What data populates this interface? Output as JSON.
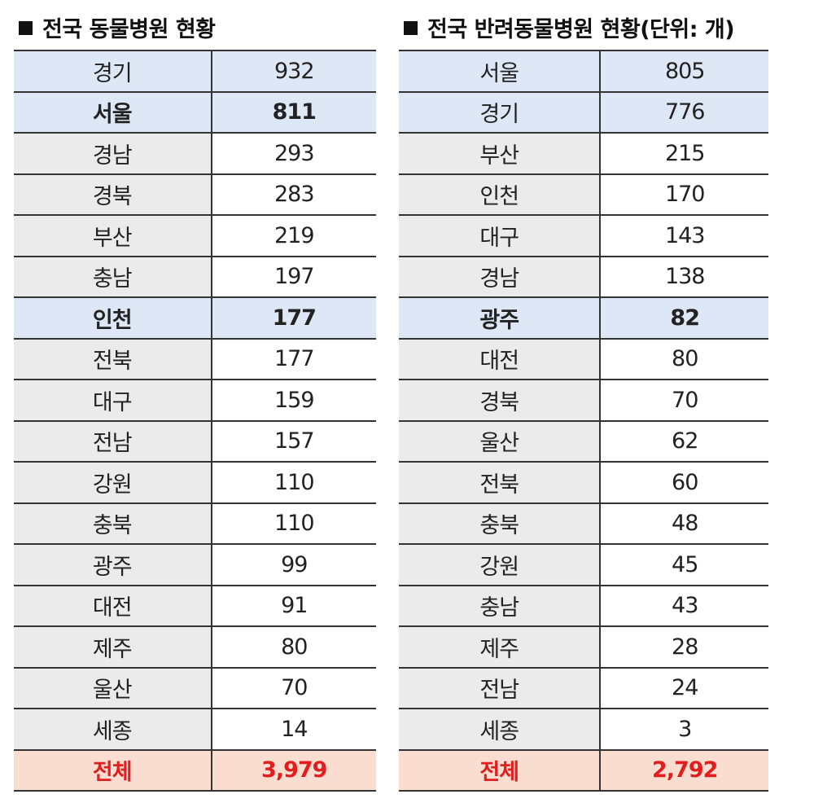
{
  "tables": [
    {
      "title": "전국 동물병원 현황",
      "rows": [
        {
          "region": "경기",
          "value": "932",
          "highlight": true,
          "bold": false
        },
        {
          "region": "서울",
          "value": "811",
          "highlight": true,
          "bold": true
        },
        {
          "region": "경남",
          "value": "293"
        },
        {
          "region": "경북",
          "value": "283"
        },
        {
          "region": "부산",
          "value": "219"
        },
        {
          "region": "충남",
          "value": "197"
        },
        {
          "region": "인천",
          "value": "177",
          "highlight": true,
          "bold": true
        },
        {
          "region": "전북",
          "value": "177"
        },
        {
          "region": "대구",
          "value": "159"
        },
        {
          "region": "전남",
          "value": "157"
        },
        {
          "region": "강원",
          "value": "110"
        },
        {
          "region": "충북",
          "value": "110"
        },
        {
          "region": "광주",
          "value": "99"
        },
        {
          "region": "대전",
          "value": "91"
        },
        {
          "region": "제주",
          "value": "80"
        },
        {
          "region": "울산",
          "value": "70"
        },
        {
          "region": "세종",
          "value": "14"
        }
      ],
      "total": {
        "region": "전체",
        "value": "3,979"
      }
    },
    {
      "title": "전국 반려동물병원 현황(단위: 개)",
      "rows": [
        {
          "region": "서울",
          "value": "805",
          "highlight": true,
          "bold": false
        },
        {
          "region": "경기",
          "value": "776",
          "highlight": true,
          "bold": false
        },
        {
          "region": "부산",
          "value": "215"
        },
        {
          "region": "인천",
          "value": "170"
        },
        {
          "region": "대구",
          "value": "143"
        },
        {
          "region": "경남",
          "value": "138"
        },
        {
          "region": "광주",
          "value": "82",
          "highlight": true,
          "bold": true
        },
        {
          "region": "대전",
          "value": "80"
        },
        {
          "region": "경북",
          "value": "70"
        },
        {
          "region": "울산",
          "value": "62"
        },
        {
          "region": "전북",
          "value": "60"
        },
        {
          "region": "충북",
          "value": "48"
        },
        {
          "region": "강원",
          "value": "45"
        },
        {
          "region": "충남",
          "value": "43"
        },
        {
          "region": "제주",
          "value": "28"
        },
        {
          "region": "전남",
          "value": "24"
        },
        {
          "region": "세종",
          "value": "3"
        }
      ],
      "total": {
        "region": "전체",
        "value": "2,792"
      }
    }
  ],
  "colors": {
    "highlight": "#dde7f6",
    "region_bg": "#ebebeb",
    "total_bg": "#f9ddd1",
    "total_text": "#e21d1d"
  }
}
